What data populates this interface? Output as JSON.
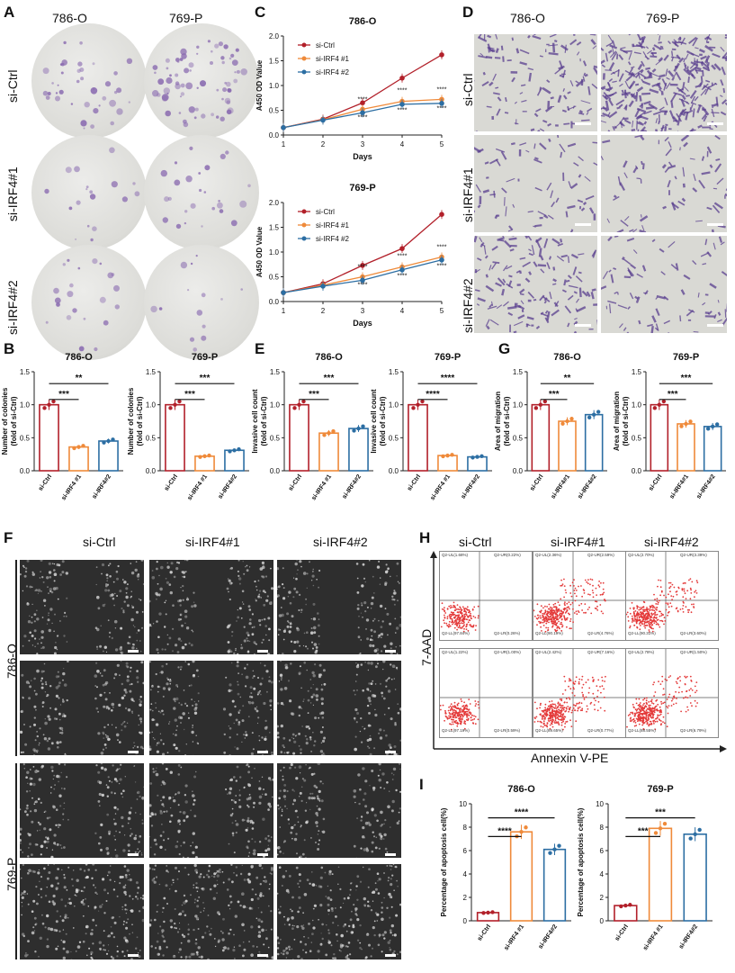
{
  "panels": {
    "A": "A",
    "B": "B",
    "C": "C",
    "D": "D",
    "E": "E",
    "F": "F",
    "G": "G",
    "H": "H",
    "I": "I"
  },
  "cells": [
    "786-O",
    "769-P"
  ],
  "conditions_A": [
    "si-Ctrl",
    "si-IRF4#1",
    "si-IRF4#2"
  ],
  "conditions_F": [
    "si-Ctrl",
    "si-IRF4#1",
    "si-IRF4#2"
  ],
  "conditions_H": [
    "si-Ctrl",
    "si-IRF4#1",
    "si-IRF4#2"
  ],
  "flow": {
    "xlabel": "Annexin V-PE",
    "ylabel": "7-AAD",
    "quadrants": [
      [
        [
          "Q2-UL(1.68%)",
          "Q2-UR(0.22%)",
          "Q2-LL(97.84%)",
          "Q2-LR(0.26%)"
        ],
        [
          "Q2-UL(2.36%)",
          "Q2-UR(2.59%)",
          "Q2-LL(90.19%)",
          "Q2-LR(4.76%)"
        ],
        [
          "Q2-UL(2.70%)",
          "Q2-UR(3.39%)",
          "Q2-LL(90.31%)",
          "Q2-LR(3.60%)"
        ]
      ],
      [
        [
          "Q2-UL(1.22%)",
          "Q2-UR(1.00%)",
          "Q2-LL(97.19%)",
          "Q2-LR(0.59%)"
        ],
        [
          "Q2-UL(2.42%)",
          "Q2-UR(7.16%)",
          "Q2-LL(89.65%)",
          "Q2-LR(0.77%)"
        ],
        [
          "Q2-UL(2.78%)",
          "Q2-UR(1.50%)",
          "Q2-LL(88.55%)",
          "Q2-LR(6.79%)"
        ]
      ]
    ]
  },
  "colors": {
    "ctrl": "#b2202a",
    "irf1": "#ef8a3a",
    "irf2": "#2c6ea3"
  },
  "chart_data": [
    {
      "id": "C1",
      "type": "line",
      "title": "786-O",
      "xlabel": "Days",
      "ylabel": "A450 OD Value",
      "x": [
        1,
        2,
        3,
        4,
        5
      ],
      "ylim": [
        0,
        2.0
      ],
      "yticks": [
        0,
        0.5,
        1.0,
        1.5,
        2.0
      ],
      "series": [
        {
          "name": "si-Ctrl",
          "values": [
            0.15,
            0.32,
            0.65,
            1.15,
            1.62
          ]
        },
        {
          "name": "si-IRF4 #1",
          "values": [
            0.15,
            0.31,
            0.52,
            0.68,
            0.72
          ]
        },
        {
          "name": "si-IRF4 #2",
          "values": [
            0.15,
            0.3,
            0.45,
            0.62,
            0.64
          ]
        }
      ],
      "annotations": [
        "****",
        "****",
        "****",
        "****",
        "****",
        "****"
      ]
    },
    {
      "id": "C2",
      "type": "line",
      "title": "769-P",
      "xlabel": "Days",
      "ylabel": "A450 OD Value",
      "x": [
        1,
        2,
        3,
        4,
        5
      ],
      "ylim": [
        0,
        2.0
      ],
      "yticks": [
        0,
        0.5,
        1.0,
        1.5,
        2.0
      ],
      "series": [
        {
          "name": "si-Ctrl",
          "values": [
            0.18,
            0.36,
            0.73,
            1.07,
            1.76
          ]
        },
        {
          "name": "si-IRF4 #1",
          "values": [
            0.18,
            0.33,
            0.5,
            0.7,
            0.9
          ]
        },
        {
          "name": "si-IRF4 #2",
          "values": [
            0.18,
            0.31,
            0.43,
            0.64,
            0.84
          ]
        }
      ],
      "annotations": [
        "****",
        "****",
        "****",
        "****",
        "****",
        "****"
      ]
    },
    {
      "id": "B1",
      "type": "bar",
      "title": "786-O",
      "ylabel": "Number of colonies\n(fold of si-Ctrl)",
      "categories": [
        "si-Ctrl",
        "si-IRF4 #1",
        "si-IRF4#2"
      ],
      "values": [
        1.0,
        0.36,
        0.45
      ],
      "ylim": [
        0,
        1.5
      ],
      "yticks": [
        0,
        0.5,
        1.0,
        1.5
      ],
      "sig": [
        "***",
        "**"
      ]
    },
    {
      "id": "B2",
      "type": "bar",
      "title": "769-P",
      "ylabel": "Number of colonies\n(fold of si-Ctrl)",
      "categories": [
        "si-Ctrl",
        "si-IRF4 #1",
        "si-IRF4#2"
      ],
      "values": [
        1.0,
        0.22,
        0.31
      ],
      "ylim": [
        0,
        1.5
      ],
      "yticks": [
        0,
        0.5,
        1.0,
        1.5
      ],
      "sig": [
        "***",
        "***"
      ]
    },
    {
      "id": "E1",
      "type": "bar",
      "title": "786-O",
      "ylabel": "Invasive cell count\n(fold of si-Ctrl)",
      "categories": [
        "si-Ctrl",
        "si-IRF4 #1",
        "si-IRF4#2"
      ],
      "values": [
        1.0,
        0.57,
        0.64
      ],
      "ylim": [
        0,
        1.5
      ],
      "yticks": [
        0,
        0.5,
        1.0,
        1.5
      ],
      "sig": [
        "***",
        "***"
      ]
    },
    {
      "id": "E2",
      "type": "bar",
      "title": "769-P",
      "ylabel": "Invasive cell count\n(fold of si-Ctrl)",
      "categories": [
        "si-Ctrl",
        "si-IRF4 #1",
        "si-IRF4#2"
      ],
      "values": [
        1.0,
        0.23,
        0.21
      ],
      "ylim": [
        0,
        1.5
      ],
      "yticks": [
        0,
        0.5,
        1.0,
        1.5
      ],
      "sig": [
        "****",
        "****"
      ]
    },
    {
      "id": "G1",
      "type": "bar",
      "title": "786-O",
      "ylabel": "Area of migration\n(fold of si-Ctrl)",
      "categories": [
        "si-Ctrl",
        "si-IRF4#1",
        "si-IRF4#2"
      ],
      "values": [
        1.0,
        0.75,
        0.85
      ],
      "ylim": [
        0,
        1.5
      ],
      "yticks": [
        0,
        0.5,
        1.0,
        1.5
      ],
      "sig": [
        "***",
        "**"
      ]
    },
    {
      "id": "G2",
      "type": "bar",
      "title": "769-P",
      "ylabel": "Area of migration\n(fold of si-Ctrl)",
      "categories": [
        "si-Ctrl",
        "si-IRF4#1",
        "si-IRF4#2"
      ],
      "values": [
        1.0,
        0.71,
        0.67
      ],
      "ylim": [
        0,
        1.5
      ],
      "yticks": [
        0,
        0.5,
        1.0,
        1.5
      ],
      "sig": [
        "***",
        "***"
      ]
    },
    {
      "id": "I1",
      "type": "bar",
      "title": "786-O",
      "ylabel": "Percentage of apoptosis cell(%)",
      "categories": [
        "si-Ctrl",
        "si-IRF4 #1",
        "si-IRF4#2"
      ],
      "values": [
        0.7,
        7.6,
        6.1
      ],
      "ylim": [
        0,
        10
      ],
      "yticks": [
        0,
        2,
        4,
        6,
        8,
        10
      ],
      "sig": [
        "****",
        "****"
      ]
    },
    {
      "id": "I2",
      "type": "bar",
      "title": "769-P",
      "ylabel": "Percentage of apoptosis cell(%)",
      "categories": [
        "si-Ctrl",
        "si-IRF4 #1",
        "si-IRF4#2"
      ],
      "values": [
        1.3,
        7.9,
        7.4
      ],
      "ylim": [
        0,
        10
      ],
      "yticks": [
        0,
        2,
        4,
        6,
        8,
        10
      ],
      "sig": [
        "***",
        "***"
      ]
    }
  ]
}
